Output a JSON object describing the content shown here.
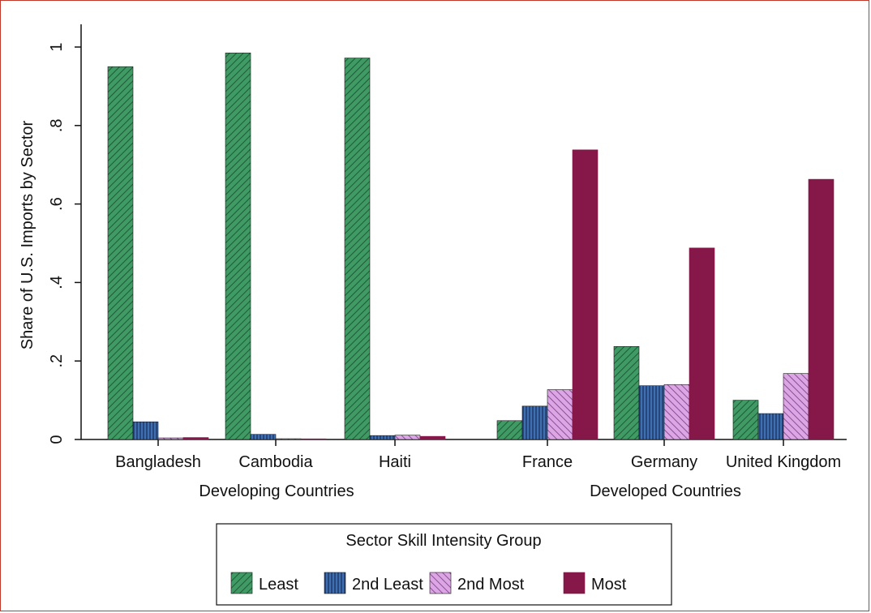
{
  "chart_data": {
    "type": "bar",
    "ylabel": "Share of U.S. Imports by Sector",
    "ylim": [
      0,
      1.05
    ],
    "yticks": [
      {
        "value": 0,
        "label": "0"
      },
      {
        "value": 0.2,
        "label": ".2"
      },
      {
        "value": 0.4,
        "label": ".4"
      },
      {
        "value": 0.6,
        "label": ".6"
      },
      {
        "value": 0.8,
        "label": ".8"
      },
      {
        "value": 1,
        "label": "1"
      }
    ],
    "grid": false,
    "categories": [
      "Bangladesh",
      "Cambodia",
      "Haiti",
      "France",
      "Germany",
      "United Kingdom"
    ],
    "groups": [
      {
        "label": "Developing Countries",
        "categories": [
          "Bangladesh",
          "Cambodia",
          "Haiti"
        ]
      },
      {
        "label": "Developed Countries",
        "categories": [
          "France",
          "Germany",
          "United Kingdom"
        ]
      }
    ],
    "series": [
      {
        "name": "Least",
        "color": "#3f9a64",
        "pattern": "diagonal",
        "values": [
          0.95,
          0.985,
          0.972,
          0.048,
          0.237,
          0.1
        ]
      },
      {
        "name": "2nd Least",
        "color": "#3e6fb0",
        "pattern": "vertical",
        "values": [
          0.045,
          0.013,
          0.01,
          0.085,
          0.137,
          0.066
        ]
      },
      {
        "name": "2nd Most",
        "color": "#c57fd0",
        "pattern": "diagonal-reverse",
        "values": [
          0.004,
          0.002,
          0.011,
          0.127,
          0.14,
          0.168
        ]
      },
      {
        "name": "Most",
        "color": "#851749",
        "pattern": "solid",
        "values": [
          0.005,
          0.001,
          0.008,
          0.738,
          0.488,
          0.663
        ]
      }
    ],
    "legend": {
      "title": "Sector Skill Intensity Group",
      "position": "bottom"
    }
  }
}
